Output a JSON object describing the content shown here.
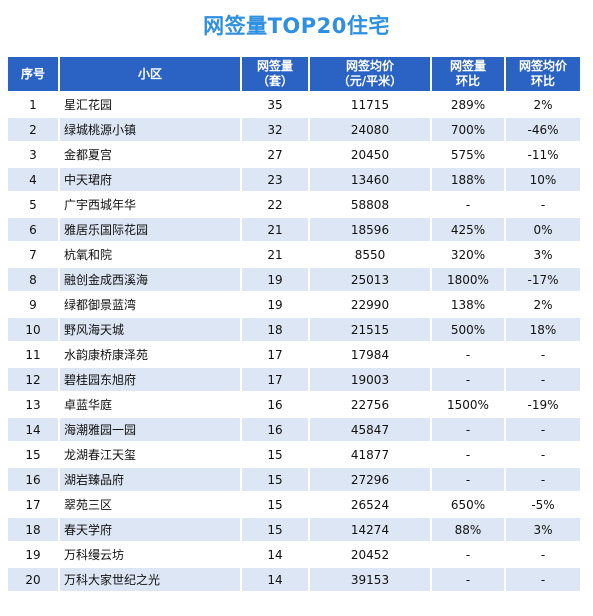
{
  "page": {
    "title": "网签量TOP20住宅",
    "colors": {
      "header_bg": "#2b63c4",
      "title": "#2f8fe0",
      "stripe": "#dde6f4"
    }
  },
  "chart_data": {
    "type": "table",
    "title": "网签量TOP20住宅",
    "columns": [
      [
        "序号"
      ],
      [
        "小区"
      ],
      [
        "网签量",
        "（套）"
      ],
      [
        "网签均价",
        "（元/平米）"
      ],
      [
        "网签量",
        "环比"
      ],
      [
        "网签均价",
        "环比"
      ]
    ],
    "rows": [
      [
        "1",
        "星汇花园",
        "35",
        "11715",
        "289%",
        "2%"
      ],
      [
        "2",
        "绿城桃源小镇",
        "32",
        "24080",
        "700%",
        "-46%"
      ],
      [
        "3",
        "金都夏宫",
        "27",
        "20450",
        "575%",
        "-11%"
      ],
      [
        "4",
        "中天珺府",
        "23",
        "13460",
        "188%",
        "10%"
      ],
      [
        "5",
        "广宇西城年华",
        "22",
        "58808",
        "-",
        "-"
      ],
      [
        "6",
        "雅居乐国际花园",
        "21",
        "18596",
        "425%",
        "0%"
      ],
      [
        "7",
        "杭氧和院",
        "21",
        "8550",
        "320%",
        "3%"
      ],
      [
        "8",
        "融创金成西溪海",
        "19",
        "25013",
        "1800%",
        "-17%"
      ],
      [
        "9",
        "绿都御景蓝湾",
        "19",
        "22990",
        "138%",
        "2%"
      ],
      [
        "10",
        "野风海天城",
        "18",
        "21515",
        "500%",
        "18%"
      ],
      [
        "11",
        "水韵康桥康泽苑",
        "17",
        "17984",
        "-",
        "-"
      ],
      [
        "12",
        "碧桂园东旭府",
        "17",
        "19003",
        "-",
        "-"
      ],
      [
        "13",
        "卓蓝华庭",
        "16",
        "22756",
        "1500%",
        "-19%"
      ],
      [
        "14",
        "海潮雅园一园",
        "16",
        "45847",
        "-",
        "-"
      ],
      [
        "15",
        "龙湖春江天玺",
        "15",
        "41877",
        "-",
        "-"
      ],
      [
        "16",
        "湖岩臻品府",
        "15",
        "27296",
        "-",
        "-"
      ],
      [
        "17",
        "翠苑三区",
        "15",
        "26524",
        "650%",
        "-5%"
      ],
      [
        "18",
        "春天学府",
        "15",
        "14274",
        "88%",
        "3%"
      ],
      [
        "19",
        "万科缦云坊",
        "14",
        "20452",
        "-",
        "-"
      ],
      [
        "20",
        "万科大家世纪之光",
        "14",
        "39153",
        "-",
        "-"
      ]
    ]
  }
}
